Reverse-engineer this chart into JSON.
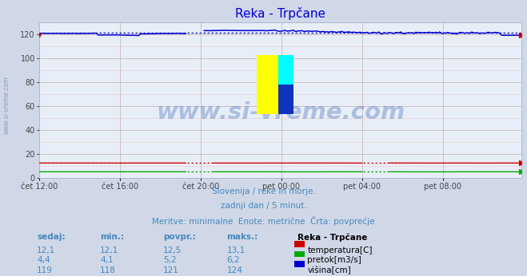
{
  "title": "Reka - Trpčane",
  "title_color": "#0000cc",
  "bg_color": "#d0d8e8",
  "plot_bg_color": "#e8eef8",
  "grid_color_major": "#c8b8b8",
  "grid_color_minor": "#e8d0d0",
  "x_labels": [
    "čet 12:00",
    "čet 16:00",
    "čet 20:00",
    "pet 00:00",
    "pet 04:00",
    "pet 08:00"
  ],
  "x_ticks": [
    0,
    48,
    96,
    144,
    192,
    240
  ],
  "total_points": 288,
  "ylim": [
    0,
    130
  ],
  "y_ticks": [
    0,
    20,
    40,
    60,
    80,
    100,
    120
  ],
  "watermark_text": "www.si-vreme.com",
  "watermark_color": "#2255aa",
  "watermark_alpha": 0.3,
  "side_watermark_color": "#7799bb",
  "subtitle1": "Slovenija / reke in morje.",
  "subtitle2": "zadnji dan / 5 minut.",
  "subtitle3": "Meritve: minimalne  Enote: metrične  Črta: povprečje",
  "subtitle_color": "#4488bb",
  "legend_title": "Reka - Trpčane",
  "legend_items": [
    {
      "label": "temperatura[C]",
      "color": "#cc0000"
    },
    {
      "label": "pretok[m3/s]",
      "color": "#00aa00"
    },
    {
      "label": "višina[cm]",
      "color": "#0000cc"
    }
  ],
  "table_headers": [
    "sedaj:",
    "min.:",
    "povpr.:",
    "maks.:"
  ],
  "table_data": [
    [
      "12,1",
      "12,1",
      "12,5",
      "13,1"
    ],
    [
      "4,4",
      "4,1",
      "5,2",
      "6,2"
    ],
    [
      "119",
      "118",
      "121",
      "124"
    ]
  ],
  "table_color": "#4488bb",
  "temp_avg": 12.5,
  "temp_min": 12.1,
  "temp_max": 13.1,
  "flow_avg": 5.2,
  "flow_min": 4.1,
  "flow_max": 6.2,
  "height_avg": 121,
  "height_min": 118,
  "height_max": 124
}
